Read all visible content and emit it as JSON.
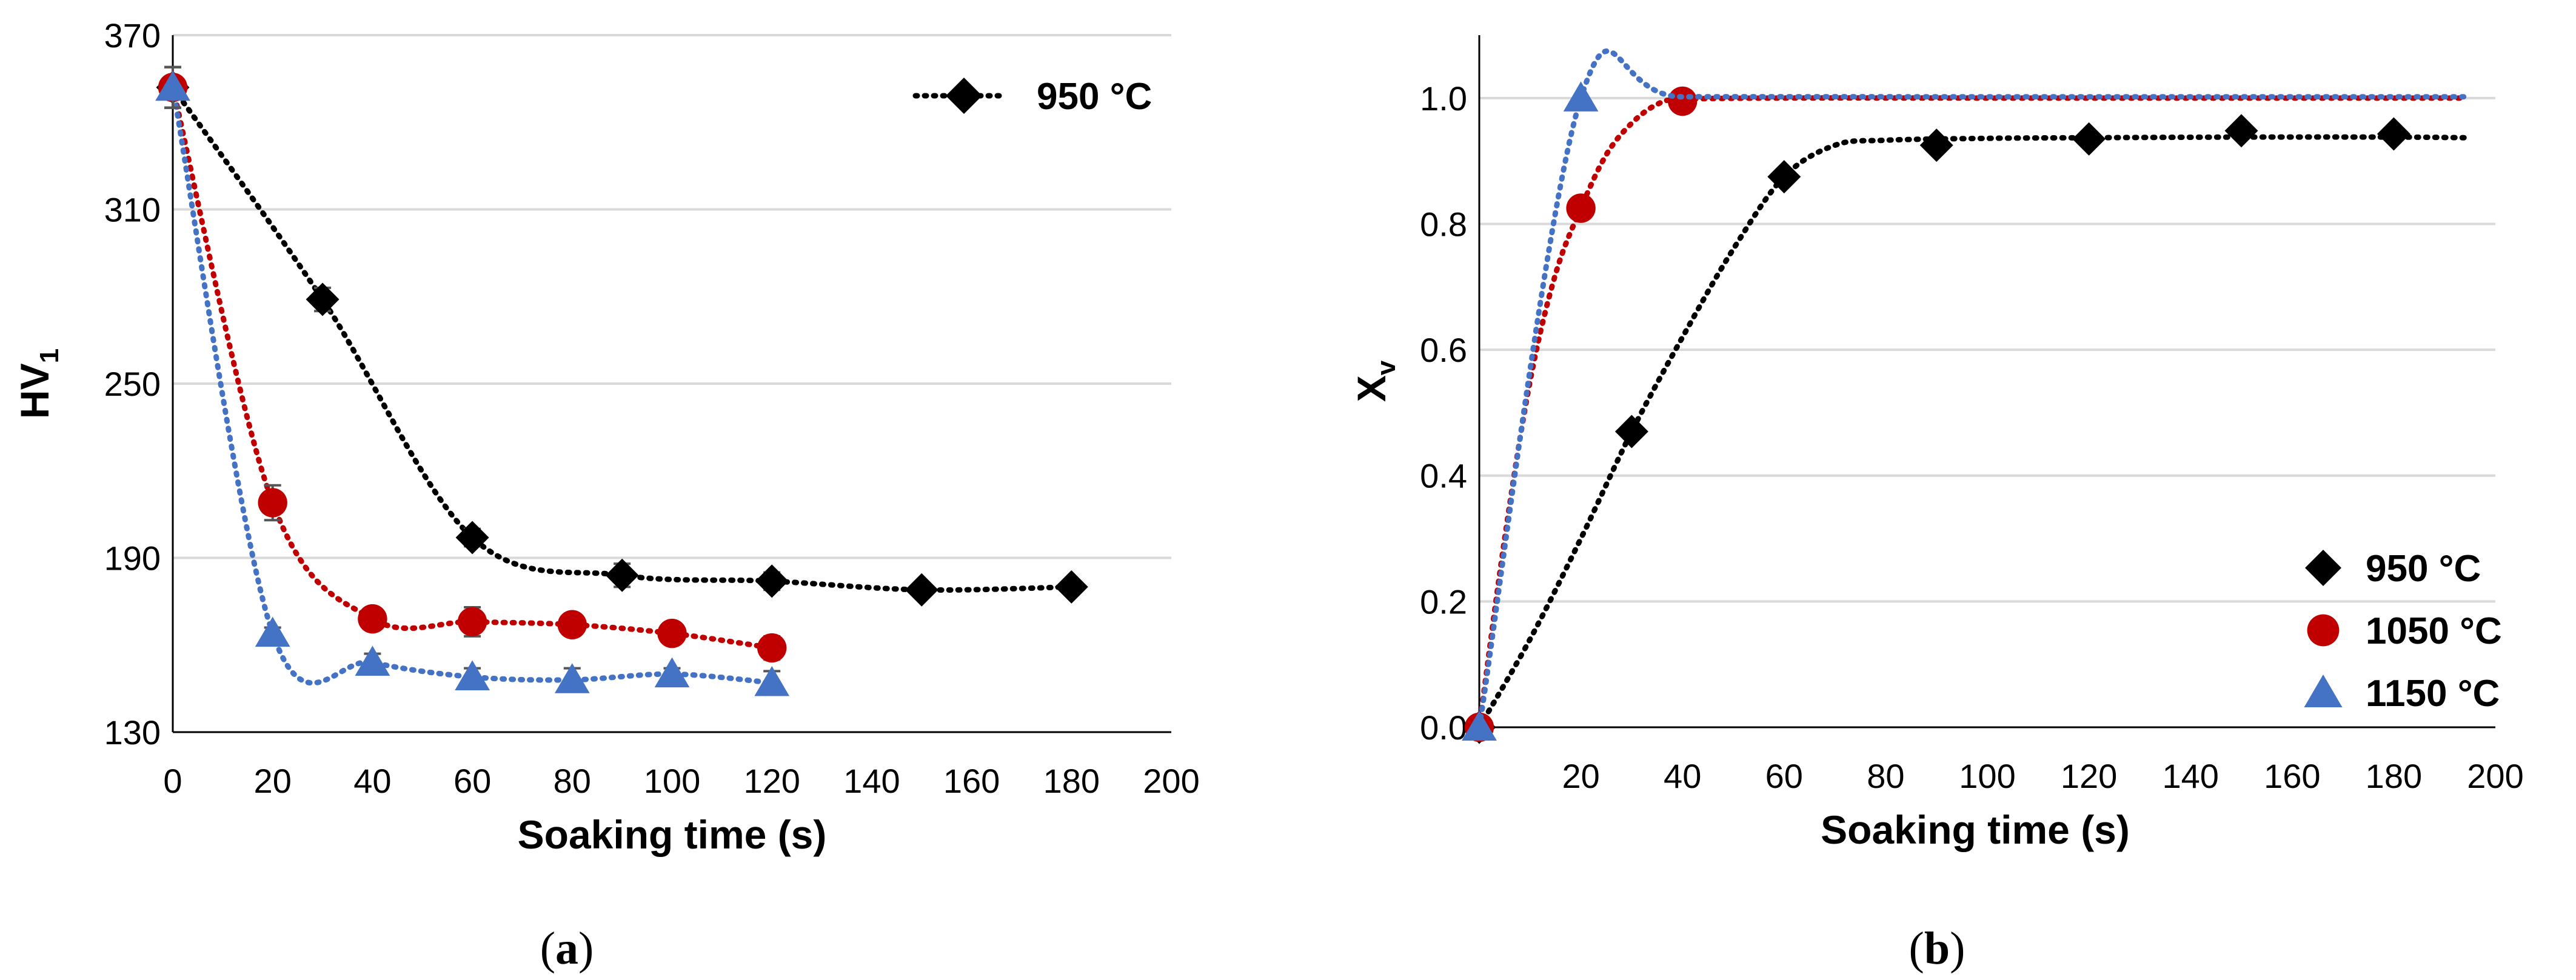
{
  "colors": {
    "s950": "#000000",
    "s1050": "#C00000",
    "s1150": "#4472C4",
    "grid": "#D9D9D9",
    "axis": "#000000",
    "errorbar": "#555555"
  },
  "chart_data": [
    {
      "panel": "a",
      "type": "scatter",
      "xlabel": "Soaking time (s)",
      "ylabel_main": "HV",
      "ylabel_sub": "1",
      "xlim": [
        0,
        200
      ],
      "ylim": [
        130,
        370
      ],
      "xticks": [
        0,
        20,
        40,
        60,
        80,
        100,
        120,
        140,
        160,
        180,
        200
      ],
      "yticks": [
        130,
        190,
        250,
        310,
        370
      ],
      "grid": "horizontal",
      "legend_position": "top-right",
      "legend_entries": [
        "950 °C"
      ],
      "caption_open": "(",
      "caption_label": "a",
      "caption_close": ")",
      "series": [
        {
          "name": "950 °C",
          "color_key": "s950",
          "marker": "diamond",
          "x": [
            0,
            30,
            60,
            90,
            120,
            150,
            180
          ],
          "y": [
            352,
            279,
            197,
            184,
            182,
            179,
            180
          ],
          "err": [
            7,
            4,
            3,
            4,
            3,
            2,
            1
          ]
        },
        {
          "name": "1050 °C",
          "color_key": "s1050",
          "marker": "circle",
          "x": [
            0,
            20,
            40,
            60,
            80,
            100,
            120
          ],
          "y": [
            352,
            209,
            169,
            168,
            167,
            164,
            159
          ],
          "err": [
            7,
            6,
            2,
            5,
            2,
            3,
            4
          ]
        },
        {
          "name": "1150 °C",
          "color_key": "s1150",
          "marker": "triangle",
          "x": [
            0,
            20,
            40,
            60,
            80,
            100,
            120
          ],
          "y": [
            352,
            164,
            154,
            149,
            148,
            150,
            147
          ],
          "err": [
            7,
            2,
            3,
            3,
            4,
            2,
            4
          ]
        }
      ]
    },
    {
      "panel": "b",
      "type": "scatter",
      "xlabel": "Soaking time (s)",
      "ylabel_main": "X",
      "ylabel_sub": "v",
      "xlim": [
        0,
        200
      ],
      "ylim": [
        0.0,
        1.1
      ],
      "xticks": [
        20,
        40,
        60,
        80,
        100,
        120,
        140,
        160,
        180,
        200
      ],
      "yticks": [
        0.0,
        0.2,
        0.4,
        0.6,
        0.8,
        1.0
      ],
      "ytick_labels": [
        "0.0",
        "0.2",
        "0.4",
        "0.6",
        "0.8",
        "1.0"
      ],
      "grid": "horizontal",
      "legend_position": "bottom-right",
      "legend_entries": [
        "950 °C",
        "1050 °C",
        "1150 °C"
      ],
      "caption_open": "(",
      "caption_label": "b",
      "caption_close": ")",
      "series": [
        {
          "name": "950 °C",
          "color_key": "s950",
          "marker": "diamond",
          "x": [
            0,
            30,
            60,
            90,
            120,
            150,
            180
          ],
          "y": [
            0.0,
            0.47,
            0.875,
            0.925,
            0.935,
            0.948,
            0.943
          ],
          "curve_x": [
            0,
            10,
            20,
            30,
            40,
            50,
            60,
            70,
            80,
            100,
            120,
            150,
            180,
            194
          ],
          "curve_y": [
            0.0,
            0.14,
            0.3,
            0.47,
            0.62,
            0.76,
            0.875,
            0.925,
            0.933,
            0.936,
            0.937,
            0.938,
            0.938,
            0.937
          ]
        },
        {
          "name": "1050 °C",
          "color_key": "s1050",
          "marker": "circle",
          "x": [
            0,
            20,
            40
          ],
          "y": [
            0.0,
            0.825,
            0.995
          ],
          "curve_x": [
            0,
            5,
            10,
            15,
            20,
            25,
            30,
            35,
            40,
            60,
            100,
            150,
            194
          ],
          "curve_y": [
            0.0,
            0.3,
            0.55,
            0.72,
            0.825,
            0.91,
            0.96,
            0.99,
            0.998,
            1.0,
            1.0,
            1.0,
            1.0
          ]
        },
        {
          "name": "1150 °C",
          "color_key": "s1150",
          "marker": "triangle",
          "x": [
            0,
            20
          ],
          "y": [
            0.0,
            1.0
          ],
          "curve_x": [
            0,
            20,
            40,
            100,
            150,
            194
          ],
          "curve_y": [
            0.0,
            1.0,
            1.002,
            1.002,
            1.002,
            1.002
          ]
        }
      ]
    }
  ]
}
